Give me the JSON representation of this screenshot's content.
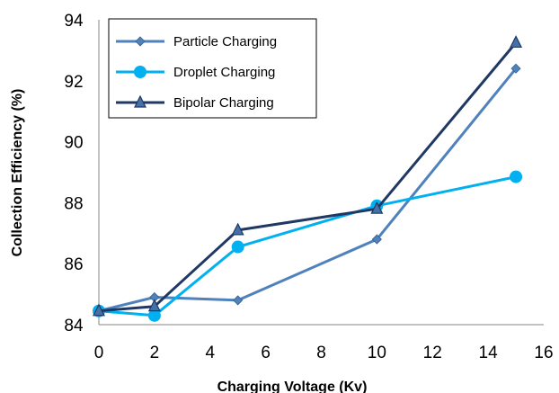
{
  "chart_data": {
    "type": "line",
    "xlabel": "Charging Voltage (Kv)",
    "ylabel": "Collection Efficiency (%)",
    "xlim": [
      0,
      16
    ],
    "ylim": [
      84,
      94
    ],
    "xticks": [
      "0",
      "2",
      "4",
      "6",
      "8",
      "10",
      "12",
      "14",
      "16"
    ],
    "yticks": [
      "84",
      "86",
      "88",
      "90",
      "92",
      "94"
    ],
    "grid": false,
    "legend_position": "top-left",
    "series": [
      {
        "name": "Particle Charging",
        "color": "#4F81BD",
        "marker": "diamond",
        "x": [
          0,
          2,
          5,
          10,
          15
        ],
        "y": [
          84.45,
          84.9,
          84.8,
          86.8,
          92.4
        ]
      },
      {
        "name": "Droplet Charging",
        "color": "#00B0F0",
        "marker": "circle",
        "x": [
          0,
          2,
          5,
          10,
          15
        ],
        "y": [
          84.45,
          84.3,
          86.55,
          87.9,
          88.85
        ]
      },
      {
        "name": "Bipolar Charging",
        "color": "#1F3864",
        "marker": "triangle",
        "x": [
          0,
          2,
          5,
          10,
          15
        ],
        "y": [
          84.45,
          84.6,
          87.1,
          87.8,
          93.25
        ]
      }
    ]
  }
}
